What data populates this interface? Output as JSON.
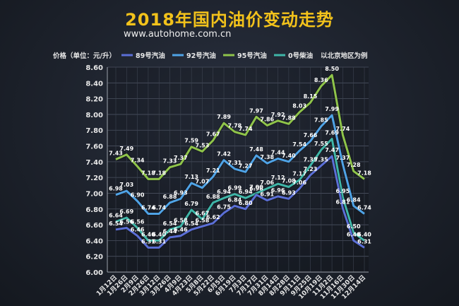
{
  "header": {
    "title": "2018年国内油价变动走势",
    "subtitle": "www.autohome.com.cn"
  },
  "chart_data": {
    "type": "line",
    "title": "2018年国内油价变动走势",
    "ylabel": "价格（单位：元/升）",
    "note": "以北京地区为例",
    "ylim": [
      6.0,
      8.6
    ],
    "yticks": [
      "6.00",
      "6.20",
      "6.40",
      "6.60",
      "6.80",
      "7.00",
      "7.20",
      "7.40",
      "7.60",
      "7.80",
      "8.00",
      "8.20",
      "8.40",
      "8.60"
    ],
    "categories": [
      "1月12日",
      "1月26日",
      "2月9日",
      "2月26日",
      "3月12日",
      "3月26日",
      "4月9日",
      "4月23日",
      "5月8日",
      "5月22日",
      "6月5日",
      "6月19日",
      "7月3日",
      "7月17日",
      "7月31日",
      "8月14日",
      "8月28日",
      "9月11日",
      "9月25日",
      "10月19日",
      "11月2日",
      "11月16日",
      "11月30日",
      "12月14日"
    ],
    "axis_labels": [
      "1月12日",
      "1月26日",
      "2月9日",
      "2月26日",
      "3月12日",
      "3月26日",
      "4月9日",
      "4月23日",
      "5月8日",
      "5月22日",
      "6月5日",
      "6月19日",
      "7月3日",
      "7月17日",
      "7月31日",
      "8月14日",
      "8月28日",
      "9月11日",
      "9月25日",
      "10月19日",
      "11月2日",
      "11月16日",
      "11月30日",
      "12月14日"
    ],
    "grid": true,
    "legend_position": "top",
    "series": [
      {
        "name": "89号汽油",
        "color": "#5b6fd6",
        "values": [
          6.54,
          6.56,
          6.46,
          6.31,
          6.31,
          6.44,
          6.46,
          6.54,
          6.58,
          6.62,
          6.75,
          6.84,
          6.8,
          6.98,
          6.91,
          6.96,
          6.93,
          7.06,
          7.23,
          7.35,
          7.47,
          6.81,
          6.4,
          6.31
        ],
        "labels": [
          "6.54",
          "6.56",
          "6.46",
          "6.31",
          "6.31",
          "6.44",
          "6.46",
          "6.54",
          "6.58",
          "6.62",
          "6.75",
          "6.84",
          "6.80",
          "6.98",
          "6.91",
          "6.96",
          "6.93",
          "7.06",
          "7.23",
          "7.35",
          "7.47",
          "6.81",
          "6.40",
          "6.31"
        ]
      },
      {
        "name": "92号汽油",
        "color": "#4fa3e6",
        "values": [
          6.98,
          7.03,
          6.9,
          6.74,
          6.74,
          6.88,
          6.93,
          7.13,
          7.07,
          7.21,
          7.42,
          7.31,
          7.27,
          7.48,
          7.38,
          7.44,
          7.4,
          7.54,
          7.66,
          7.85,
          7.99,
          7.37,
          6.84,
          6.74
        ],
        "labels": [
          "6.98",
          "7.03",
          "6.90",
          "6.74",
          "6.74",
          "6.88",
          "6.93",
          "7.13",
          "7.07",
          "7.21",
          "7.42",
          "7.31",
          "7.27",
          "7.48",
          "7.38",
          "7.44",
          "7.40",
          "7.54",
          "7.66",
          "7.85",
          "7.99",
          "7.37",
          "6.84",
          "6.74"
        ]
      },
      {
        "name": "95号汽油",
        "color": "#8fc44a",
        "values": [
          7.43,
          7.49,
          7.34,
          7.18,
          7.18,
          7.33,
          7.37,
          7.59,
          7.53,
          7.67,
          7.89,
          7.78,
          7.74,
          7.97,
          7.86,
          7.92,
          7.88,
          8.03,
          8.15,
          8.36,
          8.5,
          7.74,
          7.28,
          7.18
        ],
        "labels": [
          "7.43",
          "7.49",
          "7.34",
          "7.18",
          "7.18",
          "7.33",
          "7.37",
          "7.59",
          "7.53",
          "7.67",
          "7.89",
          "7.78",
          "7.74",
          "7.97",
          "7.86",
          "7.92",
          "7.88",
          "8.03",
          "8.15",
          "8.36",
          "8.50",
          "7.74",
          "7.28",
          "7.18"
        ]
      },
      {
        "name": "0号柴油",
        "color": "#3fb6a8",
        "values": [
          6.64,
          6.69,
          6.56,
          6.4,
          6.4,
          6.54,
          6.58,
          6.79,
          6.67,
          6.88,
          6.94,
          6.99,
          6.94,
          7.0,
          7.06,
          7.12,
          7.08,
          7.17,
          7.35,
          7.55,
          7.69,
          6.95,
          6.5,
          6.4
        ],
        "labels": [
          "6.64",
          "6.69",
          "6.56",
          "6.40",
          "6.40",
          "6.54",
          "6.58",
          "6.79",
          "6.67",
          "6.88",
          "6.94",
          "6.99",
          "6.94",
          "7.00",
          "7.06",
          "7.12",
          "7.08",
          "7.17",
          "7.35",
          "7.55",
          "7.69",
          "6.95",
          "6.50",
          "6.40"
        ]
      }
    ]
  }
}
